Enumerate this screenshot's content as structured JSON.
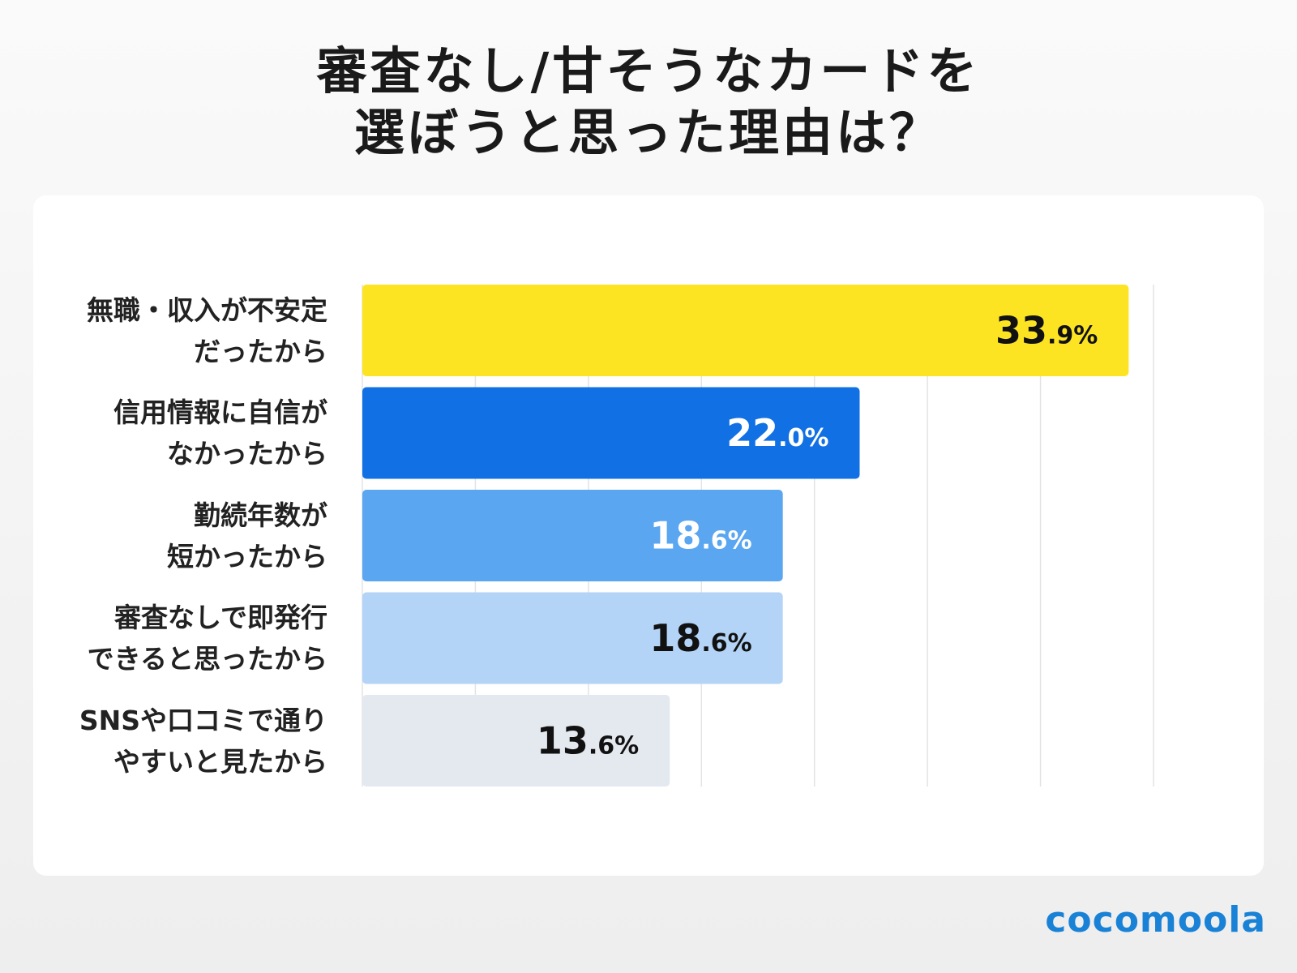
{
  "chart_data": {
    "type": "barh",
    "title": "審査なし/甘そうなカードを\n選ぼうと思った理由は？",
    "categories": [
      "無職・収入が不安定\nだったから",
      "信用情報に自信が\nなかったから",
      "勤続年数が\n短かったから",
      "審査なしで即発行\nできると思ったから",
      "SNSや口コミで通り\nやすいと見たから"
    ],
    "values": [
      33.9,
      22.0,
      18.6,
      18.6,
      13.6
    ],
    "value_labels": [
      "33.9%",
      "22.0%",
      "18.6%",
      "18.6%",
      "13.6%"
    ],
    "colors": [
      "#fde423",
      "#1170e4",
      "#5aa6f0",
      "#b3d4f7",
      "#e4e8ef"
    ],
    "label_colors": [
      "#111111",
      "#ffffff",
      "#ffffff",
      "#111111",
      "#111111"
    ],
    "xlim": [
      0,
      35
    ],
    "xticks": [
      0,
      5,
      10,
      15,
      20,
      25,
      30,
      35
    ],
    "grid": true
  },
  "logo": "cocomoola"
}
